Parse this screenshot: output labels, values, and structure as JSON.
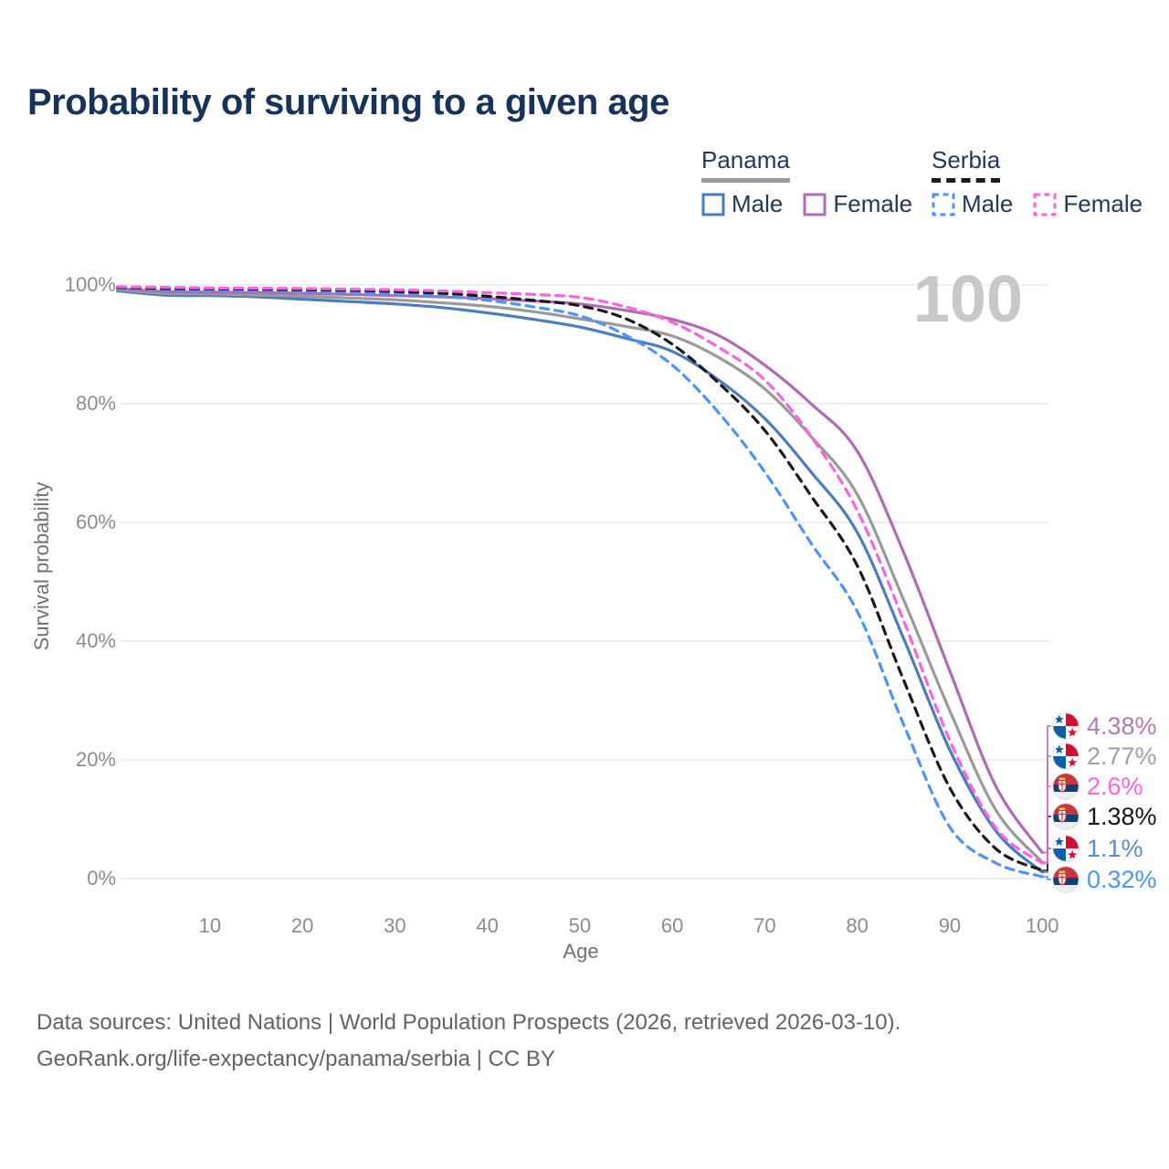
{
  "title": "Probability of surviving to a given age",
  "watermark_age": "100",
  "legend": {
    "groups": [
      {
        "label": "Panama",
        "underline_color": "#9a9a9a",
        "underline_dashed": false,
        "items": [
          {
            "label": "Male",
            "color": "#4a7dbf",
            "dashed": false
          },
          {
            "label": "Female",
            "color": "#b06cb3",
            "dashed": false
          }
        ]
      },
      {
        "label": "Serbia",
        "underline_color": "#1b1b1b",
        "underline_dashed": true,
        "items": [
          {
            "label": "Male",
            "color": "#4d94ff",
            "dashed": true
          },
          {
            "label": "Female",
            "color": "#ff63e0",
            "dashed": true
          }
        ]
      }
    ]
  },
  "y_axis": {
    "title": "Survival probability",
    "tick_values": [
      0,
      20,
      40,
      60,
      80,
      100
    ],
    "tick_suffix": "%"
  },
  "x_axis": {
    "title": "Age",
    "tick_values": [
      10,
      20,
      30,
      40,
      50,
      60,
      70,
      80,
      90,
      100
    ]
  },
  "chart_data": {
    "type": "line",
    "xlabel": "Age",
    "ylabel": "Survival probability",
    "xlim": [
      0,
      100
    ],
    "ylim": [
      0,
      100
    ],
    "grid": "horizontal",
    "legend_position": "top-right",
    "x": [
      0,
      5,
      10,
      15,
      20,
      25,
      30,
      35,
      40,
      45,
      50,
      55,
      60,
      65,
      70,
      75,
      80,
      85,
      90,
      95,
      100
    ],
    "series": [
      {
        "name": "Panama Male",
        "country": "panama",
        "sex": "male",
        "color": "#4a7dbf",
        "dashed": false,
        "values": [
          99.0,
          98.3,
          98.2,
          98.0,
          97.6,
          97.2,
          96.8,
          96.2,
          95.3,
          94.2,
          92.9,
          91.0,
          88.8,
          84.0,
          77.5,
          68.5,
          58.3,
          40.5,
          21.7,
          8.0,
          1.1
        ],
        "end_label": "1.1%",
        "end_label_color": "#5b8bc9",
        "flag": "panama"
      },
      {
        "name": "Panama Both sexes",
        "country": "panama",
        "sex": "both",
        "color": "#9a9a9a",
        "dashed": false,
        "values": [
          99.2,
          98.6,
          98.5,
          98.3,
          98.1,
          97.8,
          97.5,
          97.0,
          96.4,
          95.5,
          94.3,
          93.0,
          91.4,
          87.8,
          82.5,
          74.5,
          64.7,
          47.0,
          28.3,
          11.5,
          2.77
        ],
        "end_label": "2.77%",
        "end_label_color": "#a0a0a0",
        "flag": "panama"
      },
      {
        "name": "Panama Female",
        "country": "panama",
        "sex": "female",
        "color": "#b06cb3",
        "dashed": false,
        "values": [
          99.4,
          98.9,
          98.8,
          98.7,
          98.6,
          98.4,
          98.2,
          98.0,
          97.7,
          97.3,
          96.8,
          95.7,
          94.2,
          91.5,
          86.5,
          80.0,
          72.0,
          55.0,
          35.0,
          15.5,
          4.38
        ],
        "end_label": "4.38%",
        "end_label_color": "#b478b8",
        "flag": "panama"
      },
      {
        "name": "Serbia Male",
        "country": "serbia",
        "sex": "male",
        "color": "#4d94ff",
        "dashed": true,
        "values": [
          99.5,
          99.2,
          99.1,
          99.0,
          98.9,
          98.7,
          98.5,
          98.1,
          97.4,
          96.3,
          94.8,
          91.5,
          86.5,
          78.5,
          68.5,
          56.5,
          45.0,
          26.0,
          8.7,
          2.6,
          0.32
        ],
        "end_label": "0.32%",
        "end_label_color": "#4d94ff",
        "flag": "serbia"
      },
      {
        "name": "Serbia Both sexes",
        "country": "serbia",
        "sex": "both",
        "color": "#1a1a1a",
        "dashed": true,
        "values": [
          99.6,
          99.4,
          99.35,
          99.3,
          99.2,
          99.1,
          98.9,
          98.6,
          98.1,
          97.4,
          96.5,
          94.3,
          90.0,
          83.5,
          75.5,
          64.5,
          52.7,
          33.5,
          15.3,
          5.0,
          1.38
        ],
        "end_label": "1.38%",
        "end_label_color": "#161616",
        "flag": "serbia"
      },
      {
        "name": "Serbia Female",
        "country": "serbia",
        "sex": "female",
        "color": "#ff63e0",
        "dashed": true,
        "values": [
          99.7,
          99.6,
          99.5,
          99.45,
          99.4,
          99.3,
          99.2,
          99.0,
          98.7,
          98.4,
          97.9,
          96.3,
          93.7,
          89.5,
          84.0,
          74.5,
          62.0,
          43.5,
          23.3,
          8.5,
          2.6
        ],
        "end_label": "2.6%",
        "end_label_color": "#ff63e0",
        "flag": "serbia"
      }
    ],
    "end_label_order_top_to_bottom": [
      "4.38%",
      "2.77%",
      "2.6%",
      "1.38%",
      "1.1%",
      "0.32%"
    ]
  },
  "footer": {
    "line1": "Data sources: United Nations | World Population Prospects (2026, retrieved 2026-03-10).",
    "line2": "GeoRank.org/life-expectancy/panama/serbia | CC BY"
  }
}
